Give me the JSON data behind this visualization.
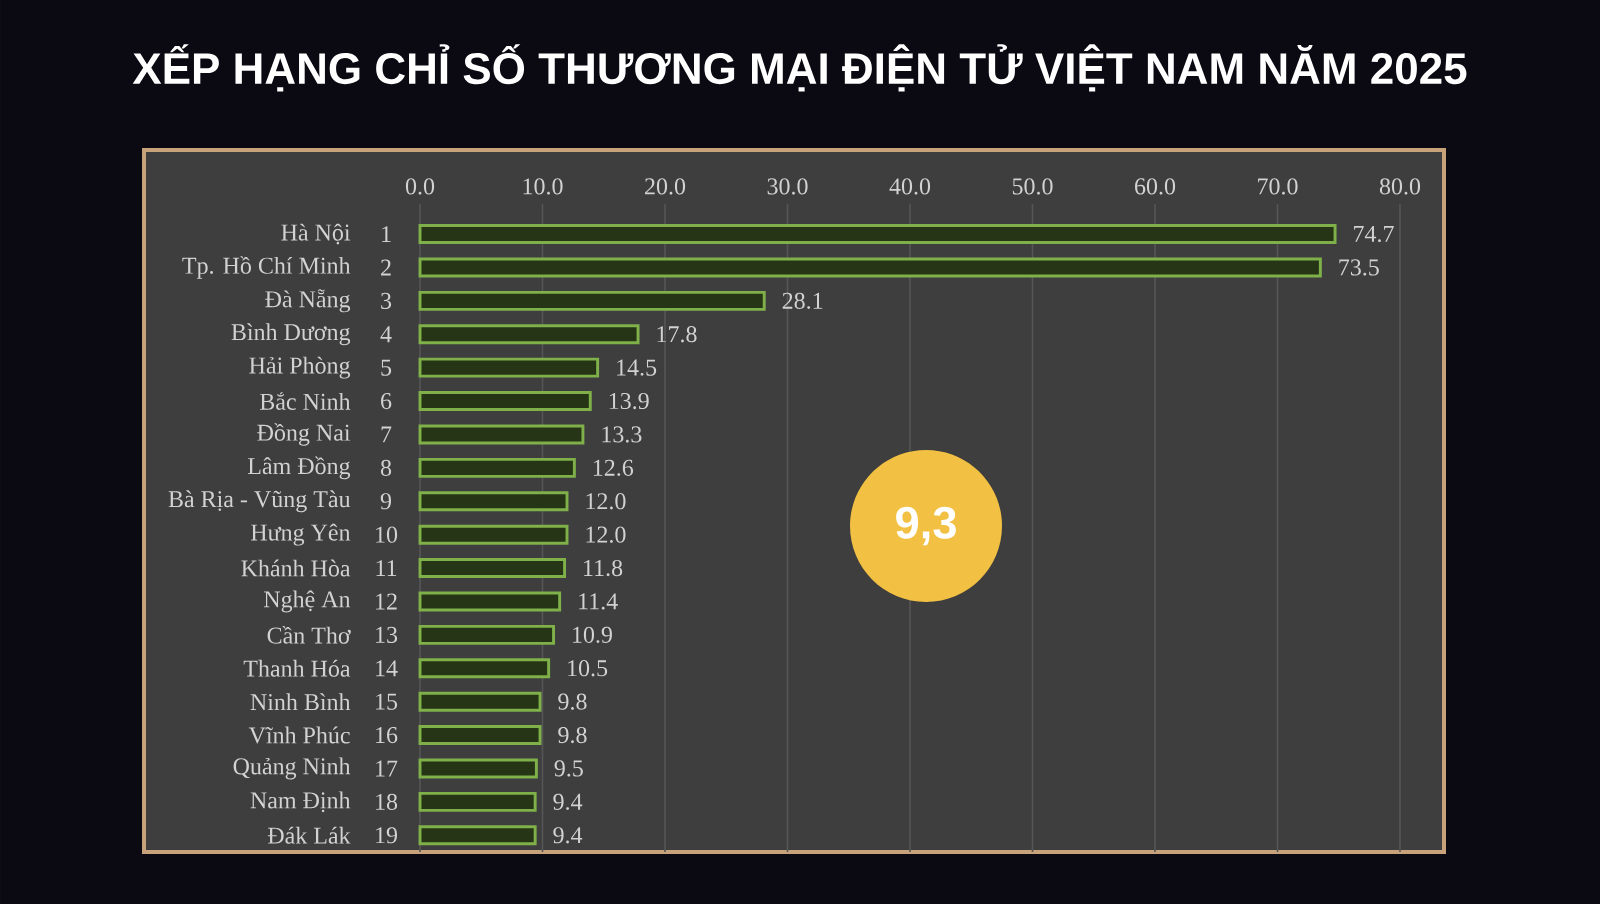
{
  "chart_data": {
    "type": "bar",
    "orientation": "horizontal",
    "title": "XẾP HẠNG CHỈ SỐ THƯƠNG MẠI ĐIỆN TỬ VIỆT NAM NĂM 2025",
    "categories": [
      "Hà Nội",
      "Tp. Hồ Chí Minh",
      "Đà Nẵng",
      "Bình Dương",
      "Hải Phòng",
      "Bắc Ninh",
      "Đồng Nai",
      "Lâm Đồng",
      "Bà Rịa - Vũng Tàu",
      "Hưng Yên",
      "Khánh Hòa",
      "Nghệ An",
      "Cần Thơ",
      "Thanh Hóa",
      "Ninh Bình",
      "Vĩnh Phúc",
      "Quảng Ninh",
      "Nam Định",
      "Đák Lák"
    ],
    "values": [
      74.7,
      73.5,
      28.1,
      17.8,
      14.5,
      13.9,
      13.3,
      12.6,
      12.0,
      12.0,
      11.8,
      11.4,
      10.9,
      10.5,
      9.8,
      9.8,
      9.5,
      9.4,
      9.4
    ],
    "value_labels": [
      "74.7",
      "73.5",
      "28.1",
      "17.8",
      "14.5",
      "13.9",
      "13.3",
      "12.6",
      "12.0",
      "12.0",
      "11.8",
      "11.4",
      "10.9",
      "10.5",
      "9.8",
      "9.8",
      "9.5",
      "9.4",
      "9.4"
    ],
    "color": "#7fb04a",
    "xlim": [
      0,
      80
    ],
    "xticks": [
      {
        "value": 0,
        "label": "0.0"
      },
      {
        "value": 10,
        "label": "10.0"
      },
      {
        "value": 20,
        "label": "20.0"
      },
      {
        "value": 30,
        "label": "30.0"
      },
      {
        "value": 40,
        "label": "40.0"
      },
      {
        "value": 50,
        "label": "50.0"
      },
      {
        "value": 60,
        "label": "60.0"
      },
      {
        "value": 70,
        "label": "70.0"
      },
      {
        "value": 80,
        "label": "80.0"
      }
    ],
    "grid": "x",
    "annotations": [
      "1",
      "2",
      "3",
      "4",
      "5",
      "6",
      "7",
      "8",
      "9",
      "10",
      "11",
      "12",
      "13",
      "14",
      "15",
      "16",
      "17",
      "18",
      "19",
      "9,3"
    ]
  }
}
